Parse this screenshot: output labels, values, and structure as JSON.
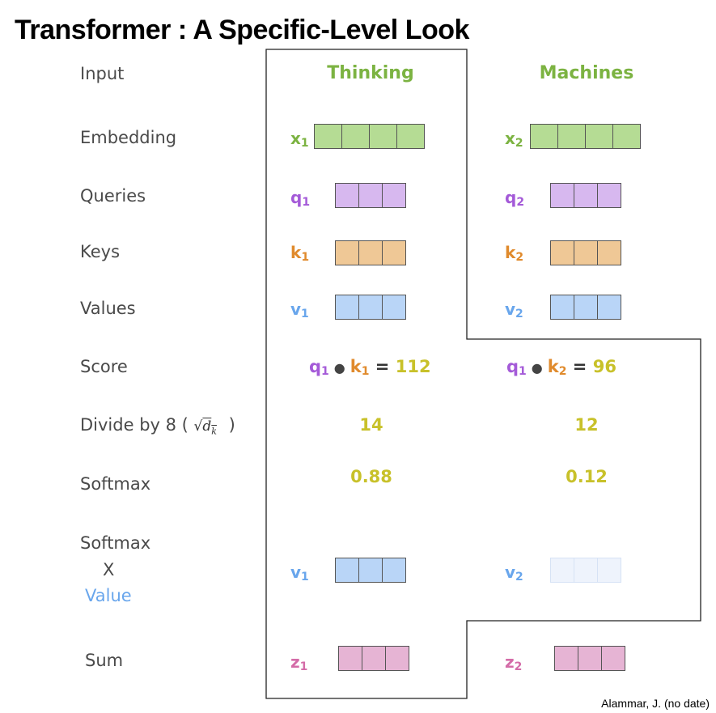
{
  "title": "Transformer : A Specific-Level Look",
  "credit": "Alammar, J. (no date)",
  "rows": {
    "input": "Input",
    "embedding": "Embedding",
    "queries": "Queries",
    "keys": "Keys",
    "values": "Values",
    "score": "Score",
    "divide_prefix": "Divide by 8 (",
    "divide_sqrt_symbol": "√",
    "divide_dk": "d",
    "divide_dk_sub": "k",
    "divide_suffix": ")",
    "softmax": "Softmax",
    "softmax_value_line1": "Softmax",
    "softmax_value_line2": "X",
    "softmax_value_line3": "Value",
    "sum": "Sum"
  },
  "words": [
    {
      "word": "Thinking",
      "x": "x",
      "x_sub": "1",
      "q": "q",
      "q_sub": "1",
      "k": "k",
      "k_sub": "1",
      "v": "v",
      "v_sub": "1",
      "score_q": "q",
      "score_q_sub": "1",
      "score_k": "k",
      "score_k_sub": "1",
      "score_eq": "=",
      "score_value": "112",
      "divided": "14",
      "softmax": "0.88",
      "weighted_v": "v",
      "weighted_v_sub": "1",
      "z": "z",
      "z_sub": "1"
    },
    {
      "word": "Machines",
      "x": "x",
      "x_sub": "2",
      "q": "q",
      "q_sub": "2",
      "k": "k",
      "k_sub": "2",
      "v": "v",
      "v_sub": "2",
      "score_q": "q",
      "score_q_sub": "1",
      "score_k": "k",
      "score_k_sub": "2",
      "score_eq": "=",
      "score_value": "96",
      "divided": "12",
      "softmax": "0.12",
      "weighted_v": "v",
      "weighted_v_sub": "2",
      "z": "z",
      "z_sub": "2"
    }
  ],
  "colors": {
    "word": "#7cb342",
    "embedding": "#b5dc94",
    "query": "#d7b8ef",
    "key": "#efc896",
    "value": "#b9d5f7",
    "value_faded": "#eef3fc",
    "sum": "#e6b4d4",
    "x_label": "#7cb342",
    "q_label": "#a45ad8",
    "k_label": "#e08a2c",
    "v_label": "#69a6ec",
    "z_label": "#d46ca8",
    "number": "#c8c12a"
  }
}
